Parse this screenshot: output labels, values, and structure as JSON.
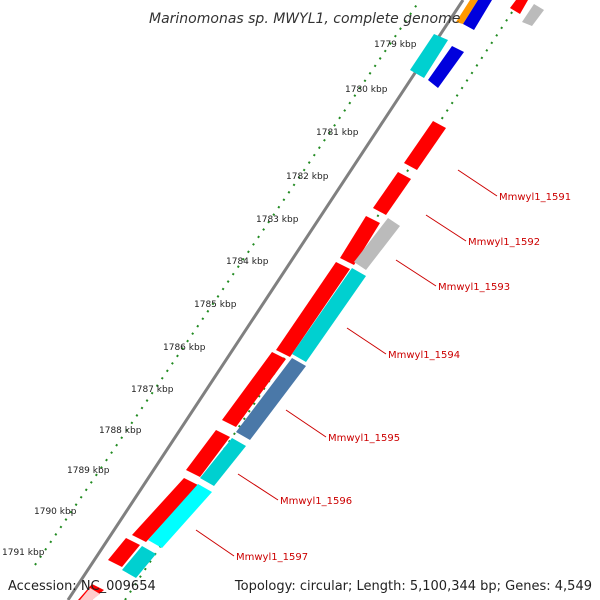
{
  "title": "Marinomonas sp. MWYL1, complete genome",
  "footer": {
    "accession": "Accession: NC_009654",
    "topology": "Topology: circular; Length: 5,100,344 bp; Genes: 4,549"
  },
  "kbp_ticks": [
    "1779 kbp",
    "1780 kbp",
    "1781 kbp",
    "1782 kbp",
    "1783 kbp",
    "1784 kbp",
    "1785 kbp",
    "1786 kbp",
    "1787 kbp",
    "1788 kbp",
    "1789 kbp",
    "1790 kbp",
    "1791 kbp"
  ],
  "gene_labels": [
    "Mmwyl1_1591",
    "Mmwyl1_1592",
    "Mmwyl1_1593",
    "Mmwyl1_1594",
    "Mmwyl1_1595",
    "Mmwyl1_1596",
    "Mmwyl1_1597"
  ],
  "colors": {
    "backbone": "#808080",
    "forward_cds": "#ff0000",
    "reverse_cds": "#00d0d0",
    "steel_cds": "#4a78a8",
    "other": "#bbbbbb",
    "blue": "#0000dd",
    "orange": "#ff9900",
    "dots": "#228b22",
    "label": "#cc0000"
  }
}
